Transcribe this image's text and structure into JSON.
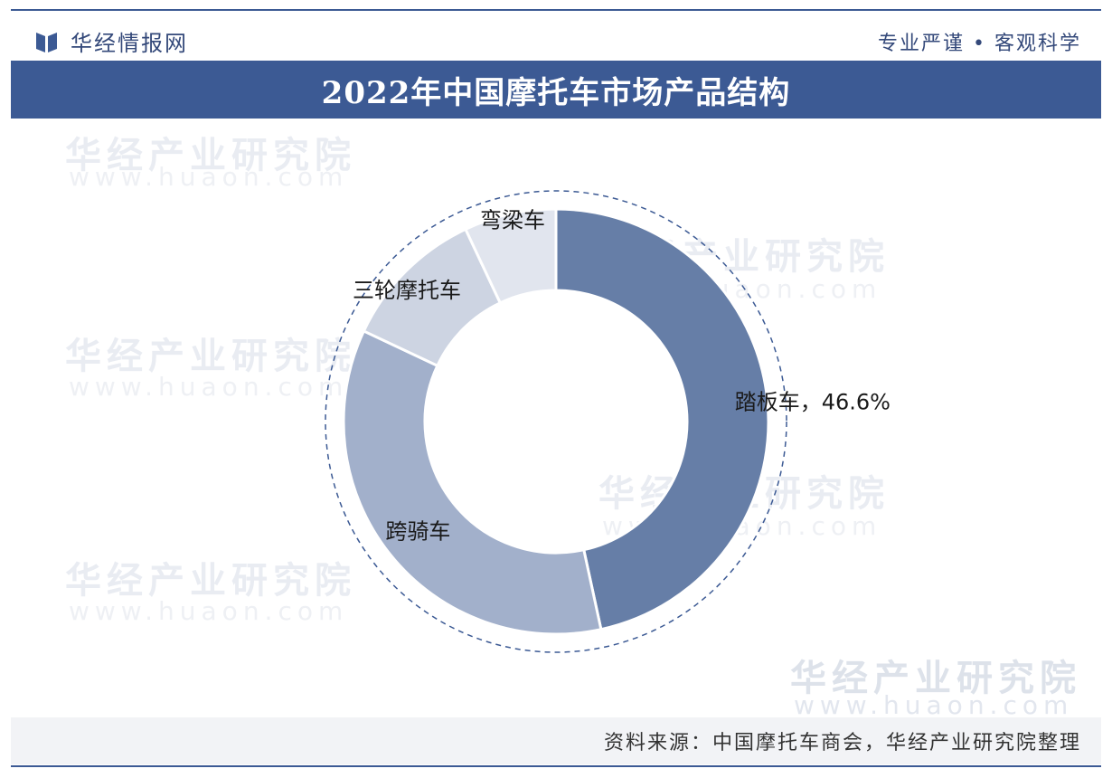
{
  "header": {
    "logo_text": "华经情报网",
    "slogan": "专业严谨 • 客观科学"
  },
  "title": "2022年中国摩托车市场产品结构",
  "watermark": {
    "text": "华经产业研究院",
    "url": "www.huaon.com"
  },
  "footer": {
    "source": "资料来源：中国摩托车商会，华经产业研究院整理"
  },
  "colors": {
    "accent": "#3c5a94",
    "slice_scooter": "#667ea7",
    "slice_straddle": "#a2b0cb",
    "slice_tricycle": "#cdd4e2",
    "slice_underbone": "#e1e5ee"
  },
  "chart_data": {
    "type": "pie",
    "style": "donut",
    "title": "2022年中国摩托车市场产品结构",
    "slices": [
      {
        "label": "踏板车",
        "value": 46.6,
        "value_label": "踏板车，46.6%"
      },
      {
        "label": "跨骑车",
        "value": 35.4,
        "value_label": "跨骑车"
      },
      {
        "label": "三轮摩托车",
        "value": 11.0,
        "value_label": "三轮摩托车"
      },
      {
        "label": "弯梁车",
        "value": 7.0,
        "value_label": "弯梁车"
      }
    ]
  }
}
